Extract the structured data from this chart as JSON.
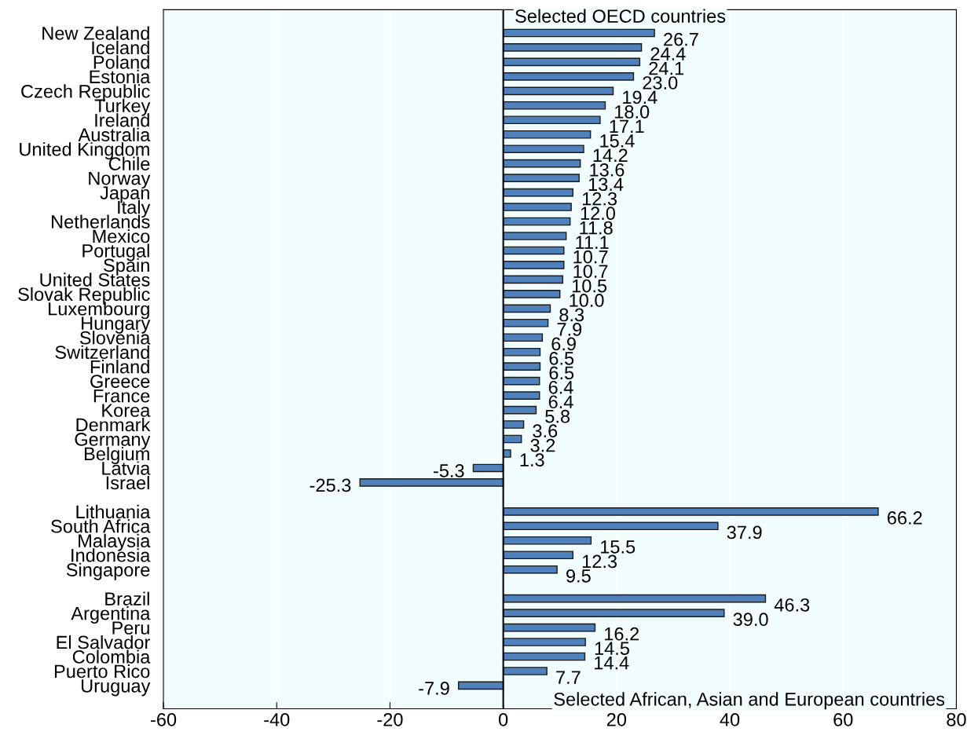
{
  "chart_data": {
    "type": "bar",
    "orientation": "horizontal",
    "categories": [
      "New Zealand",
      "Iceland",
      "Poland",
      "Estonia",
      "Czech Republic",
      "Turkey",
      "Ireland",
      "Australia",
      "United Kingdom",
      "Chile",
      "Norway",
      "Japan",
      "Italy",
      "Netherlands",
      "Mexico",
      "Portugal",
      "Spain",
      "United States",
      "Slovak Republic",
      "Luxembourg",
      "Hungary",
      "Slovenia",
      "Switzerland",
      "Finland",
      "Greece",
      "France",
      "Korea",
      "Denmark",
      "Germany",
      "Belgium",
      "Latvia",
      "Israel",
      null,
      "Lithuania",
      "South Africa",
      "Malaysia",
      "Indonesia",
      "Singapore",
      null,
      "Brazil",
      "Argentina",
      "Peru",
      "El Salvador",
      "Colombia",
      "Puerto Rico",
      "Uruguay"
    ],
    "values": [
      26.7,
      24.4,
      24.1,
      23.0,
      19.4,
      18.0,
      17.1,
      15.4,
      14.2,
      13.6,
      13.4,
      12.3,
      12.0,
      11.8,
      11.1,
      10.7,
      10.7,
      10.5,
      10.0,
      8.3,
      7.9,
      6.9,
      6.5,
      6.5,
      6.4,
      6.4,
      5.8,
      3.6,
      3.2,
      1.3,
      -5.3,
      -25.3,
      null,
      66.2,
      37.9,
      15.5,
      12.3,
      9.5,
      null,
      46.3,
      39.0,
      16.2,
      14.5,
      14.4,
      7.7,
      -7.9
    ],
    "value_labels": [
      "26.7",
      "24.4",
      "24.1",
      "23.0",
      "19.4",
      "18.0",
      "17.1",
      "15.4",
      "14.2",
      "13.6",
      "13.4",
      "12.3",
      "12.0",
      "11.8",
      "11.1",
      "10.7",
      "10.7",
      "10.5",
      "10.0",
      "8.3",
      "7.9",
      "6.9",
      "6.5",
      "6.5",
      "6.4",
      "6.4",
      "5.8",
      "3.6",
      "3.2",
      "1.3",
      "-5.3",
      "-25.3",
      null,
      "66.2",
      "37.9",
      "15.5",
      "12.3",
      "9.5",
      null,
      "46.3",
      "39.0",
      "16.2",
      "14.5",
      "14.4",
      "7.7",
      "-7.9"
    ],
    "color": "#4f81bd",
    "xlim": [
      -60,
      80
    ],
    "xticks": [
      -60,
      -40,
      -20,
      0,
      20,
      40,
      60,
      80
    ],
    "grid": "x",
    "annotations": [
      "Selected OECD countries",
      "Selected African, Asian and European countries"
    ]
  }
}
